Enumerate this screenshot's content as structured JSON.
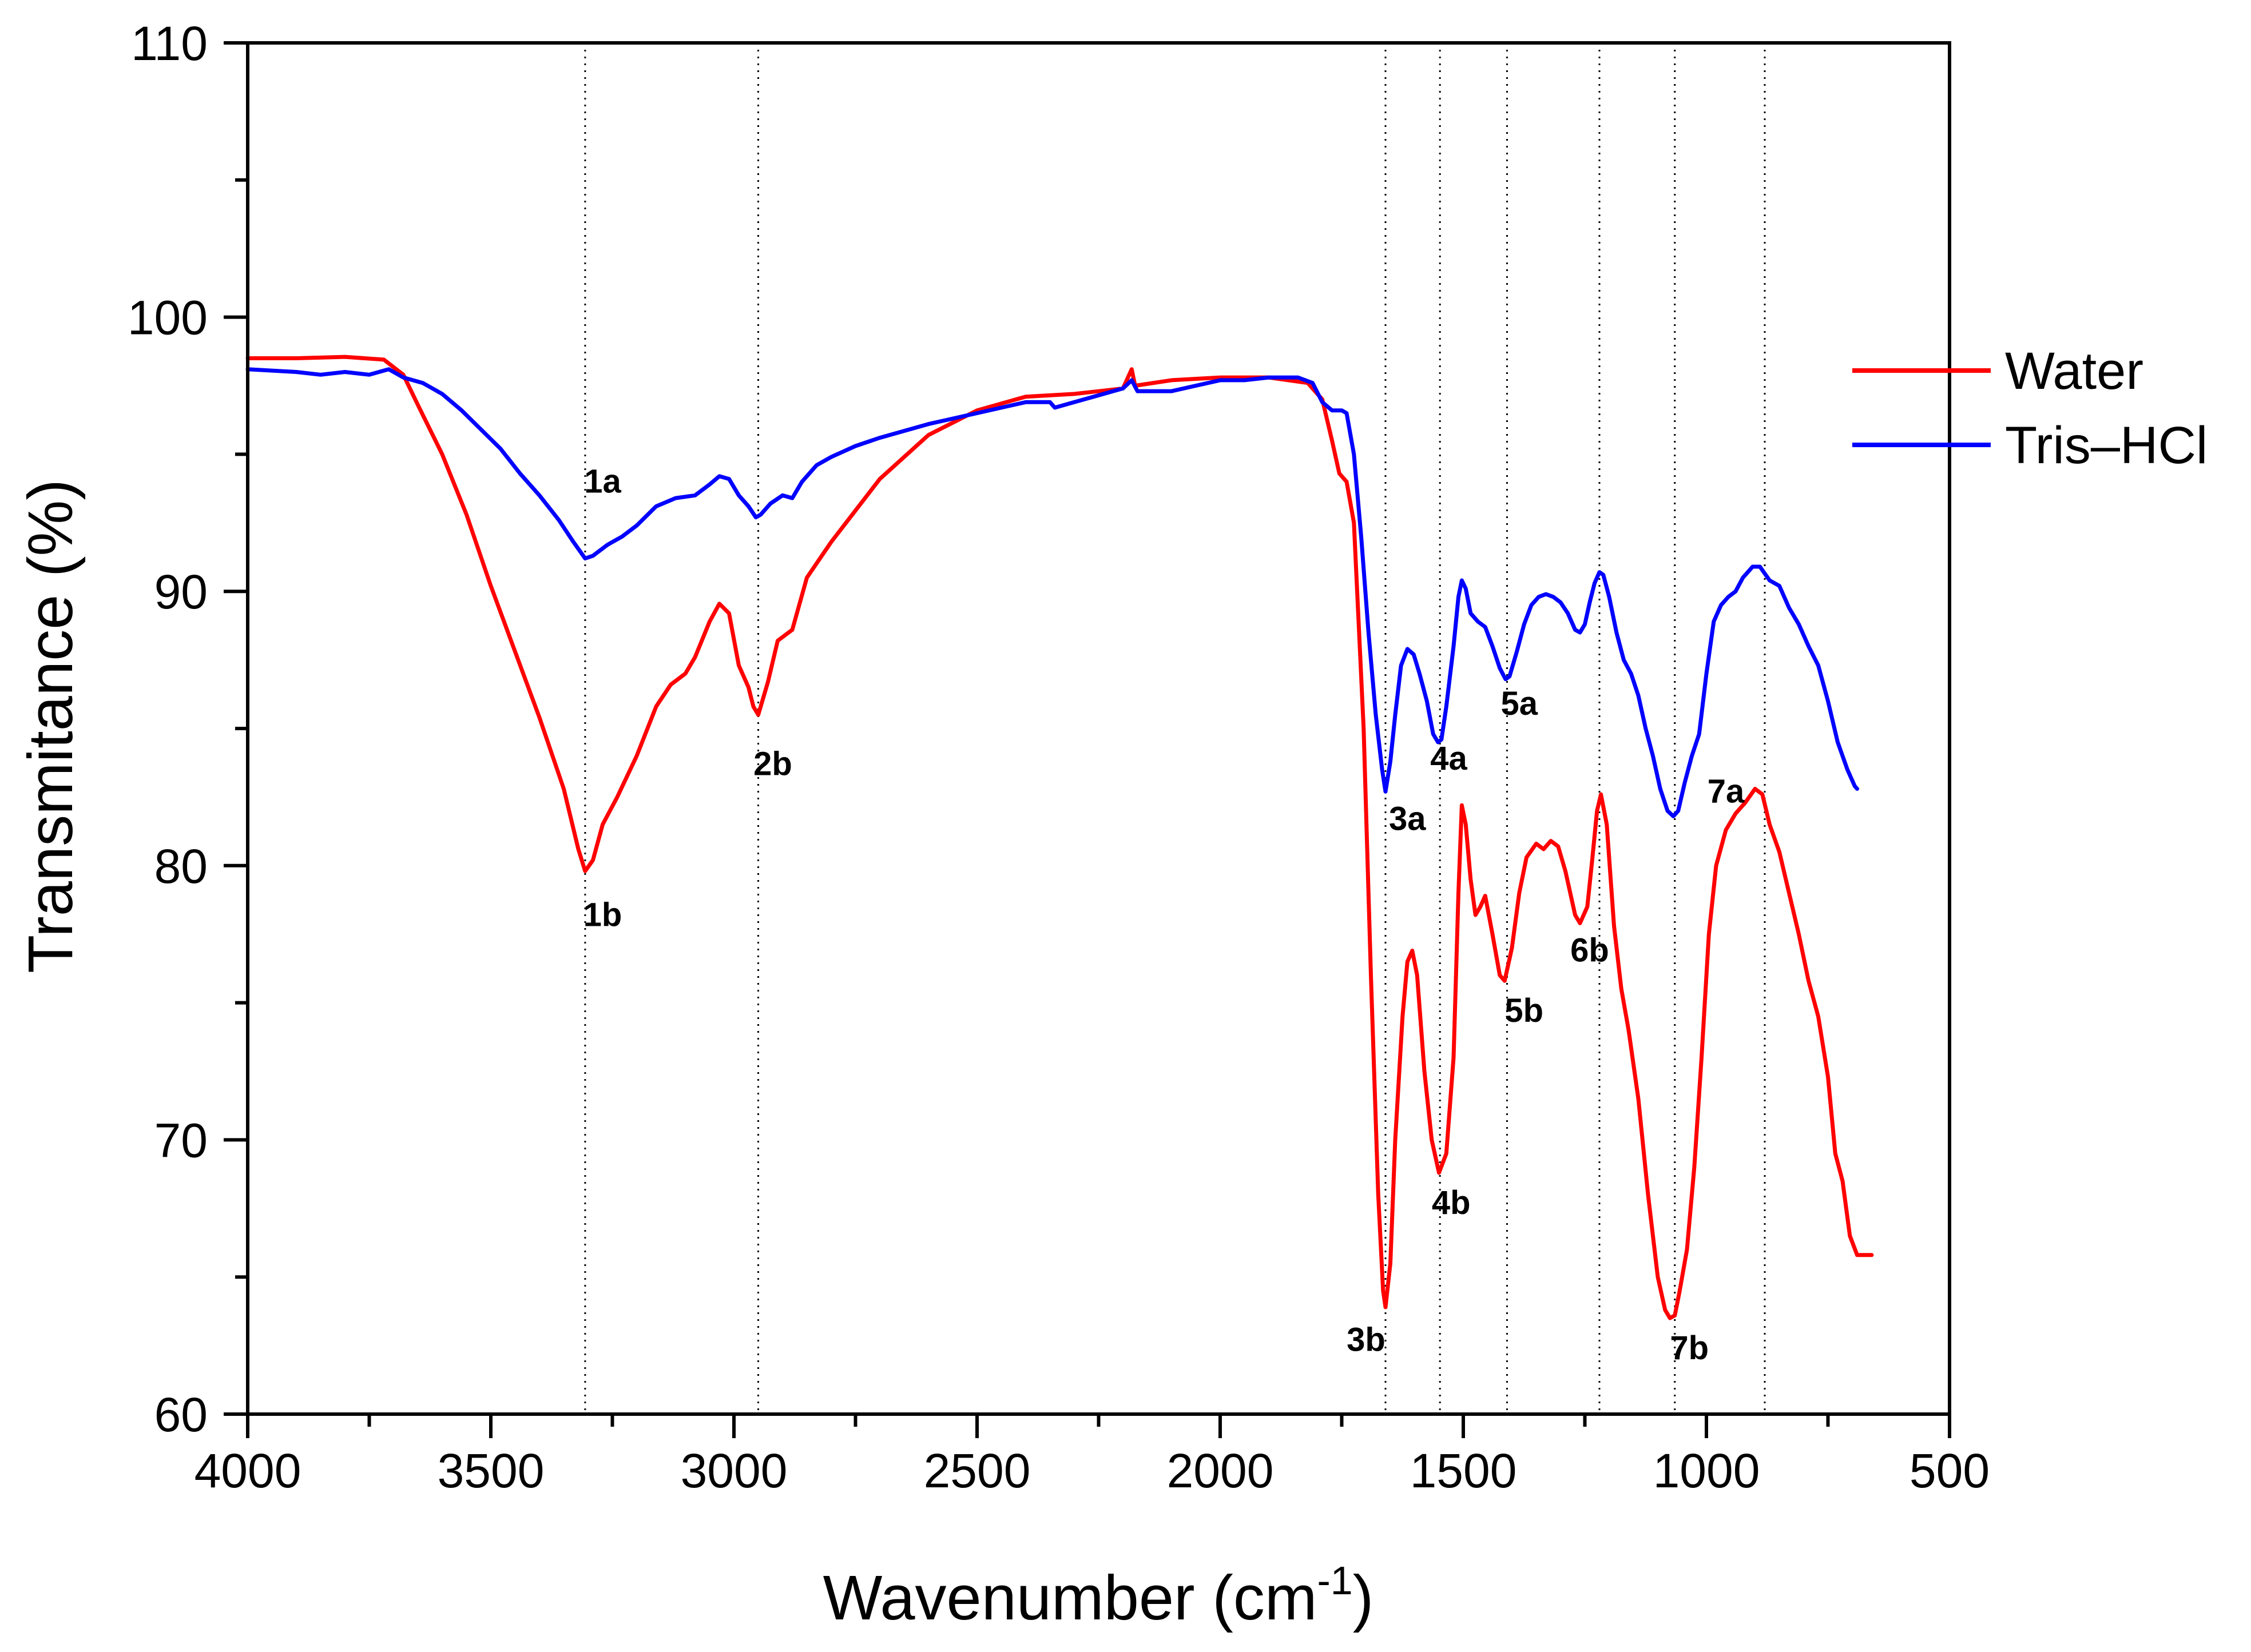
{
  "chart_data": {
    "type": "line",
    "title": "",
    "xlabel": "Wavenumber (cm",
    "xlabel_sup": "-1",
    "xlabel_close": ")",
    "ylabel": "Transmitance (%)",
    "xlim": [
      4000,
      500
    ],
    "ylim": [
      60,
      110
    ],
    "x_reversed": true,
    "grid": false,
    "xticks": [
      4000,
      3500,
      3000,
      2500,
      2000,
      1500,
      1000,
      500
    ],
    "xtick_labels": [
      "4000",
      "3500",
      "3000",
      "2500",
      "2000",
      "1500",
      "1000",
      "500"
    ],
    "yticks": [
      60,
      70,
      80,
      90,
      100,
      110
    ],
    "ytick_labels": [
      "60",
      "70",
      "80",
      "90",
      "100",
      "110"
    ],
    "x_minor_step": 250,
    "y_minor_step": 5,
    "legend_position": "right",
    "reference_lines": [
      3306,
      2950,
      1660,
      1548,
      1410,
      1220,
      1065,
      880
    ],
    "series": [
      {
        "name": "Water",
        "color": "#ff0000",
        "points": [
          [
            4000,
            98.5
          ],
          [
            3900,
            98.5
          ],
          [
            3800,
            98.55
          ],
          [
            3720,
            98.45
          ],
          [
            3680,
            97.9
          ],
          [
            3650,
            96.8
          ],
          [
            3600,
            95.0
          ],
          [
            3550,
            92.8
          ],
          [
            3500,
            90.2
          ],
          [
            3450,
            87.8
          ],
          [
            3400,
            85.4
          ],
          [
            3350,
            82.8
          ],
          [
            3320,
            80.6
          ],
          [
            3306,
            79.8
          ],
          [
            3290,
            80.2
          ],
          [
            3270,
            81.5
          ],
          [
            3240,
            82.5
          ],
          [
            3200,
            84.0
          ],
          [
            3160,
            85.8
          ],
          [
            3130,
            86.6
          ],
          [
            3100,
            87.0
          ],
          [
            3080,
            87.6
          ],
          [
            3050,
            88.9
          ],
          [
            3030,
            89.55
          ],
          [
            3010,
            89.2
          ],
          [
            2990,
            87.3
          ],
          [
            2970,
            86.5
          ],
          [
            2960,
            85.8
          ],
          [
            2950,
            85.5
          ],
          [
            2930,
            86.7
          ],
          [
            2910,
            88.2
          ],
          [
            2880,
            88.6
          ],
          [
            2850,
            90.5
          ],
          [
            2800,
            91.8
          ],
          [
            2700,
            94.1
          ],
          [
            2600,
            95.7
          ],
          [
            2500,
            96.6
          ],
          [
            2400,
            97.1
          ],
          [
            2300,
            97.2
          ],
          [
            2200,
            97.4
          ],
          [
            2182,
            98.1
          ],
          [
            2175,
            97.5
          ],
          [
            2100,
            97.7
          ],
          [
            2000,
            97.8
          ],
          [
            1900,
            97.8
          ],
          [
            1820,
            97.6
          ],
          [
            1790,
            97.0
          ],
          [
            1770,
            95.5
          ],
          [
            1755,
            94.3
          ],
          [
            1740,
            94.0
          ],
          [
            1725,
            92.5
          ],
          [
            1705,
            85.0
          ],
          [
            1690,
            76.0
          ],
          [
            1675,
            68.0
          ],
          [
            1665,
            64.5
          ],
          [
            1660,
            63.9
          ],
          [
            1650,
            65.5
          ],
          [
            1640,
            70.0
          ],
          [
            1625,
            74.5
          ],
          [
            1615,
            76.5
          ],
          [
            1605,
            76.9
          ],
          [
            1595,
            76.0
          ],
          [
            1580,
            72.5
          ],
          [
            1565,
            70.0
          ],
          [
            1550,
            68.8
          ],
          [
            1535,
            69.5
          ],
          [
            1520,
            73.0
          ],
          [
            1510,
            79.0
          ],
          [
            1503,
            82.2
          ],
          [
            1495,
            81.5
          ],
          [
            1485,
            79.5
          ],
          [
            1475,
            78.2
          ],
          [
            1465,
            78.5
          ],
          [
            1455,
            78.9
          ],
          [
            1440,
            77.5
          ],
          [
            1425,
            76.0
          ],
          [
            1415,
            75.8
          ],
          [
            1400,
            77.0
          ],
          [
            1385,
            79.0
          ],
          [
            1370,
            80.3
          ],
          [
            1350,
            80.8
          ],
          [
            1335,
            80.6
          ],
          [
            1320,
            80.9
          ],
          [
            1305,
            80.7
          ],
          [
            1290,
            79.8
          ],
          [
            1270,
            78.2
          ],
          [
            1260,
            77.9
          ],
          [
            1245,
            78.5
          ],
          [
            1235,
            80.2
          ],
          [
            1225,
            82.0
          ],
          [
            1217,
            82.6
          ],
          [
            1205,
            81.5
          ],
          [
            1190,
            77.8
          ],
          [
            1175,
            75.5
          ],
          [
            1160,
            74.0
          ],
          [
            1140,
            71.5
          ],
          [
            1120,
            68.0
          ],
          [
            1100,
            65.0
          ],
          [
            1085,
            63.8
          ],
          [
            1075,
            63.5
          ],
          [
            1065,
            63.6
          ],
          [
            1055,
            64.5
          ],
          [
            1040,
            66.0
          ],
          [
            1025,
            69.0
          ],
          [
            1010,
            73.0
          ],
          [
            995,
            77.5
          ],
          [
            980,
            80.0
          ],
          [
            960,
            81.3
          ],
          [
            940,
            81.9
          ],
          [
            920,
            82.3
          ],
          [
            900,
            82.8
          ],
          [
            885,
            82.6
          ],
          [
            870,
            81.5
          ],
          [
            850,
            80.5
          ],
          [
            830,
            79.0
          ],
          [
            810,
            77.5
          ],
          [
            790,
            75.8
          ],
          [
            770,
            74.5
          ],
          [
            750,
            72.3
          ],
          [
            735,
            69.5
          ],
          [
            720,
            68.5
          ],
          [
            705,
            66.5
          ],
          [
            690,
            65.8
          ],
          [
            660,
            65.8
          ]
        ]
      },
      {
        "name": "Tris–HCl",
        "color": "#0000ff",
        "points": [
          [
            4000,
            98.1
          ],
          [
            3900,
            98.0
          ],
          [
            3850,
            97.9
          ],
          [
            3800,
            98.0
          ],
          [
            3750,
            97.9
          ],
          [
            3710,
            98.1
          ],
          [
            3680,
            97.8
          ],
          [
            3640,
            97.6
          ],
          [
            3600,
            97.2
          ],
          [
            3560,
            96.6
          ],
          [
            3520,
            95.9
          ],
          [
            3480,
            95.2
          ],
          [
            3440,
            94.3
          ],
          [
            3400,
            93.5
          ],
          [
            3360,
            92.6
          ],
          [
            3330,
            91.8
          ],
          [
            3306,
            91.2
          ],
          [
            3290,
            91.3
          ],
          [
            3260,
            91.7
          ],
          [
            3230,
            92.0
          ],
          [
            3200,
            92.4
          ],
          [
            3160,
            93.1
          ],
          [
            3120,
            93.4
          ],
          [
            3080,
            93.5
          ],
          [
            3050,
            93.9
          ],
          [
            3030,
            94.2
          ],
          [
            3010,
            94.1
          ],
          [
            2990,
            93.5
          ],
          [
            2970,
            93.1
          ],
          [
            2955,
            92.7
          ],
          [
            2945,
            92.8
          ],
          [
            2925,
            93.2
          ],
          [
            2900,
            93.5
          ],
          [
            2880,
            93.4
          ],
          [
            2860,
            94.0
          ],
          [
            2830,
            94.6
          ],
          [
            2800,
            94.9
          ],
          [
            2750,
            95.3
          ],
          [
            2700,
            95.6
          ],
          [
            2600,
            96.1
          ],
          [
            2500,
            96.5
          ],
          [
            2400,
            96.9
          ],
          [
            2350,
            96.9
          ],
          [
            2340,
            96.7
          ],
          [
            2300,
            96.9
          ],
          [
            2200,
            97.4
          ],
          [
            2182,
            97.7
          ],
          [
            2170,
            97.3
          ],
          [
            2100,
            97.3
          ],
          [
            2050,
            97.5
          ],
          [
            2000,
            97.7
          ],
          [
            1950,
            97.7
          ],
          [
            1900,
            97.8
          ],
          [
            1840,
            97.8
          ],
          [
            1810,
            97.6
          ],
          [
            1790,
            96.9
          ],
          [
            1770,
            96.6
          ],
          [
            1750,
            96.6
          ],
          [
            1740,
            96.5
          ],
          [
            1725,
            95.0
          ],
          [
            1710,
            92.0
          ],
          [
            1695,
            88.5
          ],
          [
            1680,
            85.5
          ],
          [
            1667,
            83.5
          ],
          [
            1660,
            82.7
          ],
          [
            1650,
            83.8
          ],
          [
            1640,
            85.5
          ],
          [
            1628,
            87.3
          ],
          [
            1615,
            87.9
          ],
          [
            1602,
            87.7
          ],
          [
            1590,
            87.0
          ],
          [
            1575,
            86.0
          ],
          [
            1562,
            84.8
          ],
          [
            1552,
            84.5
          ],
          [
            1545,
            84.6
          ],
          [
            1535,
            85.8
          ],
          [
            1520,
            88.0
          ],
          [
            1510,
            89.8
          ],
          [
            1503,
            90.4
          ],
          [
            1495,
            90.1
          ],
          [
            1485,
            89.2
          ],
          [
            1470,
            88.9
          ],
          [
            1455,
            88.7
          ],
          [
            1440,
            88.0
          ],
          [
            1425,
            87.2
          ],
          [
            1413,
            86.8
          ],
          [
            1405,
            86.9
          ],
          [
            1390,
            87.8
          ],
          [
            1375,
            88.8
          ],
          [
            1360,
            89.5
          ],
          [
            1345,
            89.8
          ],
          [
            1330,
            89.9
          ],
          [
            1315,
            89.8
          ],
          [
            1300,
            89.6
          ],
          [
            1285,
            89.2
          ],
          [
            1270,
            88.6
          ],
          [
            1260,
            88.5
          ],
          [
            1250,
            88.8
          ],
          [
            1240,
            89.6
          ],
          [
            1230,
            90.3
          ],
          [
            1220,
            90.7
          ],
          [
            1212,
            90.6
          ],
          [
            1200,
            89.8
          ],
          [
            1185,
            88.5
          ],
          [
            1170,
            87.5
          ],
          [
            1155,
            87.0
          ],
          [
            1140,
            86.2
          ],
          [
            1125,
            85.0
          ],
          [
            1110,
            84.0
          ],
          [
            1095,
            82.8
          ],
          [
            1080,
            82.0
          ],
          [
            1068,
            81.8
          ],
          [
            1058,
            82.0
          ],
          [
            1045,
            83.0
          ],
          [
            1030,
            84.0
          ],
          [
            1015,
            84.8
          ],
          [
            1000,
            87.0
          ],
          [
            985,
            88.9
          ],
          [
            970,
            89.5
          ],
          [
            955,
            89.8
          ],
          [
            940,
            90.0
          ],
          [
            925,
            90.5
          ],
          [
            905,
            90.9
          ],
          [
            890,
            90.9
          ],
          [
            870,
            90.4
          ],
          [
            850,
            90.2
          ],
          [
            830,
            89.4
          ],
          [
            810,
            88.8
          ],
          [
            790,
            88.0
          ],
          [
            770,
            87.3
          ],
          [
            750,
            86.0
          ],
          [
            730,
            84.5
          ],
          [
            710,
            83.5
          ],
          [
            695,
            82.9
          ],
          [
            690,
            82.8
          ]
        ]
      }
    ],
    "annotations": [
      {
        "text": "1a",
        "x": 3270,
        "y": 93.6
      },
      {
        "text": "1b",
        "x": 3270,
        "y": 77.8
      },
      {
        "text": "2b",
        "x": 2920,
        "y": 83.3
      },
      {
        "text": "3a",
        "x": 1615,
        "y": 81.3
      },
      {
        "text": "3b",
        "x": 1700,
        "y": 62.3
      },
      {
        "text": "4a",
        "x": 1530,
        "y": 83.5
      },
      {
        "text": "4b",
        "x": 1525,
        "y": 67.3
      },
      {
        "text": "5a",
        "x": 1385,
        "y": 85.5
      },
      {
        "text": "5b",
        "x": 1375,
        "y": 74.3
      },
      {
        "text": "6b",
        "x": 1240,
        "y": 76.5
      },
      {
        "text": "7a",
        "x": 960,
        "y": 82.3
      },
      {
        "text": "7b",
        "x": 1035,
        "y": 62.0
      }
    ]
  }
}
